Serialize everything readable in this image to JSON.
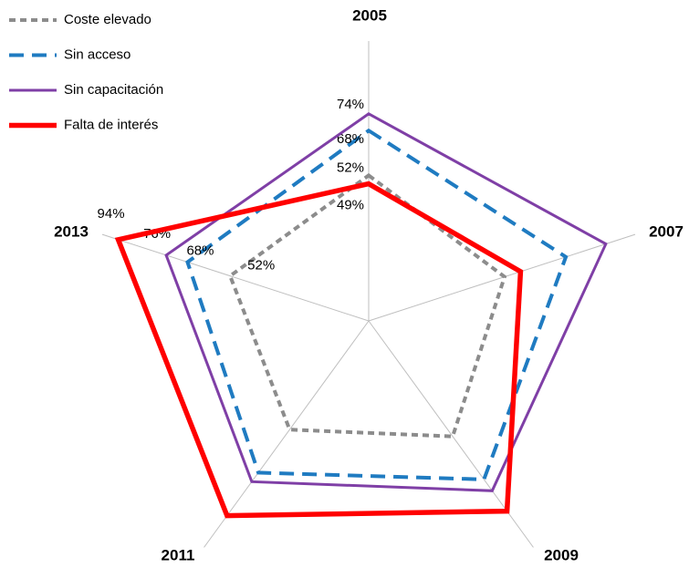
{
  "chart_data": {
    "type": "radar",
    "categories": [
      "2005",
      "2007",
      "2009",
      "2011",
      "2013"
    ],
    "ylim": [
      0,
      100
    ],
    "grid": true,
    "legend": "top-left",
    "series": [
      {
        "name": "Coste elevado",
        "color": "#8c8c8c",
        "values": [
          52,
          51,
          51,
          48,
          52
        ],
        "value_labels": [
          "52%",
          null,
          null,
          null,
          "52%"
        ]
      },
      {
        "name": "Sin acceso",
        "color": "#1f7bc1",
        "values": [
          68,
          74,
          70,
          67,
          68
        ],
        "value_labels": [
          "68%",
          null,
          null,
          null,
          "68%"
        ]
      },
      {
        "name": "Sin capacitación",
        "color": "#7f3fa6",
        "values": [
          74,
          89,
          75,
          71,
          76
        ],
        "value_labels": [
          "74%",
          null,
          null,
          null,
          "76%"
        ]
      },
      {
        "name": "Falta de interés",
        "color": "#ff0000",
        "values": [
          49,
          57,
          84,
          86,
          94
        ],
        "value_labels": [
          "49%",
          null,
          null,
          null,
          "94%"
        ]
      }
    ]
  }
}
